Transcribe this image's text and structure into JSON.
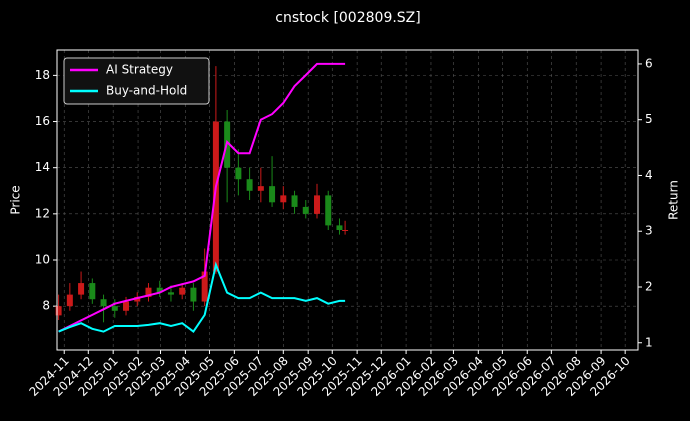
{
  "chart_data": {
    "type": "candlestick",
    "title": "cnstock [002809.SZ]",
    "ylabel": "Price",
    "y2label": "Return",
    "x": [
      "2024-10-25",
      "2024-11-08",
      "2024-11-22",
      "2024-12-06",
      "2024-12-20",
      "2025-01-03",
      "2025-01-17",
      "2025-01-31",
      "2025-02-14",
      "2025-02-28",
      "2025-03-14",
      "2025-03-28",
      "2025-04-11",
      "2025-04-25",
      "2025-05-09",
      "2025-05-23",
      "2025-06-06",
      "2025-06-20",
      "2025-07-04",
      "2025-07-18",
      "2025-08-01",
      "2025-08-15",
      "2025-08-29",
      "2025-09-12",
      "2025-09-26",
      "2025-10-10",
      "2025-10-17"
    ],
    "open": [
      7.6,
      8.0,
      8.5,
      9.0,
      8.3,
      8.0,
      7.8,
      8.2,
      8.4,
      8.8,
      8.6,
      8.5,
      8.8,
      8.2,
      9.5,
      16.0,
      14.0,
      13.5,
      13.0,
      13.2,
      12.5,
      12.8,
      12.3,
      12.0,
      12.8,
      11.5,
      11.3
    ],
    "high": [
      8.5,
      9.0,
      9.5,
      9.2,
      8.5,
      8.3,
      8.4,
      8.6,
      9.0,
      9.1,
      8.9,
      9.0,
      9.0,
      10.5,
      18.4,
      16.5,
      14.8,
      14.0,
      14.0,
      14.5,
      13.2,
      13.0,
      12.6,
      13.3,
      13.0,
      11.8,
      11.7
    ],
    "low": [
      7.4,
      7.8,
      8.3,
      8.1,
      7.3,
      7.5,
      7.6,
      8.0,
      8.2,
      8.4,
      8.2,
      8.3,
      7.8,
      8.0,
      9.4,
      12.5,
      12.8,
      12.6,
      12.5,
      12.3,
      12.2,
      12.0,
      11.8,
      11.8,
      11.3,
      11.1,
      11.1
    ],
    "close": [
      8.0,
      8.5,
      9.0,
      8.3,
      8.0,
      7.8,
      8.2,
      8.4,
      8.8,
      8.6,
      8.5,
      8.8,
      8.2,
      9.5,
      16.0,
      14.0,
      13.5,
      13.0,
      13.2,
      12.5,
      12.8,
      12.3,
      12.0,
      12.8,
      11.5,
      11.3,
      11.3
    ],
    "up_color": "#cc1a1a",
    "down_color": "#1a8a1a",
    "series": [
      {
        "name": "AI Strategy",
        "color": "#ff00ff",
        "axis": "y2",
        "values": [
          1.2,
          1.3,
          1.4,
          1.5,
          1.6,
          1.7,
          1.75,
          1.8,
          1.85,
          1.9,
          2.0,
          2.05,
          2.1,
          2.2,
          3.8,
          4.6,
          4.4,
          4.4,
          5.0,
          5.1,
          5.3,
          5.6,
          5.8,
          6.0,
          6.0,
          6.0,
          6.0
        ]
      },
      {
        "name": "Buy-and-Hold",
        "color": "#00ffff",
        "axis": "y2",
        "values": [
          1.2,
          1.28,
          1.35,
          1.25,
          1.2,
          1.3,
          1.3,
          1.3,
          1.32,
          1.35,
          1.3,
          1.35,
          1.2,
          1.5,
          2.4,
          1.9,
          1.8,
          1.8,
          1.9,
          1.8,
          1.8,
          1.8,
          1.75,
          1.8,
          1.7,
          1.75,
          1.75
        ]
      }
    ],
    "xlim": [
      "2024-10-23",
      "2026-10-17"
    ],
    "xticks": [
      "2024-11",
      "2024-12",
      "2025-01",
      "2025-02",
      "2025-03",
      "2025-04",
      "2025-05",
      "2025-06",
      "2025-07",
      "2025-08",
      "2025-09",
      "2025-10",
      "2025-11",
      "2025-12",
      "2026-01",
      "2026-02",
      "2026-03",
      "2026-04",
      "2026-05",
      "2026-06",
      "2026-07",
      "2026-08",
      "2026-09",
      "2026-10"
    ],
    "ylim": [
      6.1,
      19.1
    ],
    "yticks": [
      8,
      10,
      12,
      14,
      16,
      18
    ],
    "y2lim": [
      0.87,
      6.25
    ],
    "y2ticks": [
      1,
      2,
      3,
      4,
      5,
      6
    ],
    "grid": true,
    "legend": "upper left"
  }
}
